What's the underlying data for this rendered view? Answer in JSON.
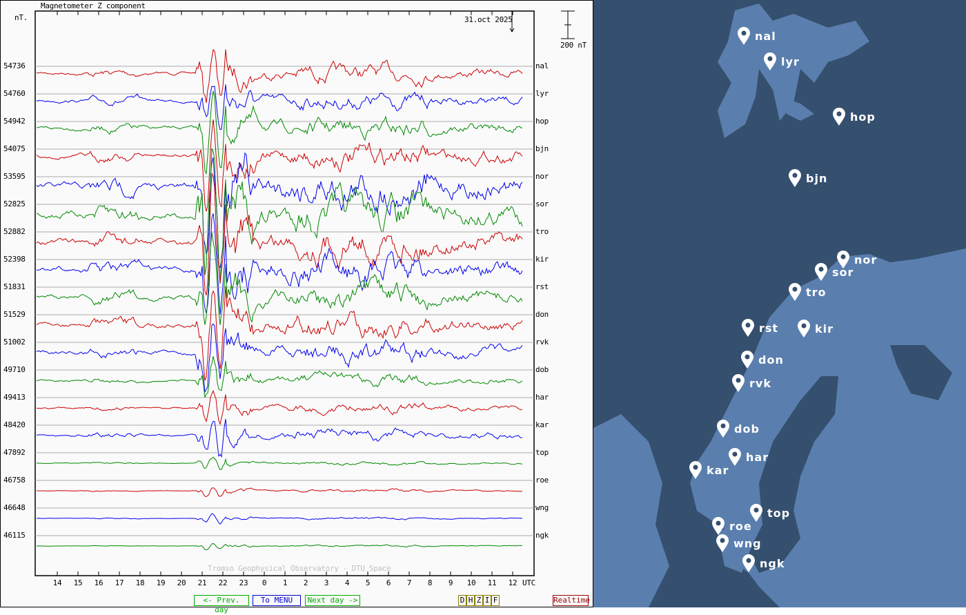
{
  "chart_data": {
    "type": "line",
    "title": "Magnetometer Z component",
    "ylabel": "nT.",
    "date_label": "31.oct 2025",
    "scale_label": "200 nT",
    "watermark": "Tromso Geophysical Observatory - DTU Space",
    "xlabel": "UTC",
    "hour_ticks": [
      "14",
      "15",
      "16",
      "17",
      "18",
      "19",
      "20",
      "21",
      "22",
      "23",
      "0",
      "1",
      "2",
      "3",
      "4",
      "5",
      "6",
      "7",
      "8",
      "9",
      "10",
      "11",
      "12"
    ],
    "stations": [
      {
        "code": "nal",
        "baseline": "54736",
        "color": "#cc0000",
        "activity": 0.7
      },
      {
        "code": "lyr",
        "baseline": "54760",
        "color": "#0000ee",
        "activity": 0.7
      },
      {
        "code": "hop",
        "baseline": "54942",
        "color": "#008800",
        "activity": 0.8
      },
      {
        "code": "bjn",
        "baseline": "54075",
        "color": "#cc0000",
        "activity": 1.0
      },
      {
        "code": "nor",
        "baseline": "53595",
        "color": "#0000ee",
        "activity": 1.6
      },
      {
        "code": "sor",
        "baseline": "52825",
        "color": "#008800",
        "activity": 1.6
      },
      {
        "code": "tro",
        "baseline": "52882",
        "color": "#cc0000",
        "activity": 1.4
      },
      {
        "code": "kir",
        "baseline": "52398",
        "color": "#0000ee",
        "activity": 1.3
      },
      {
        "code": "rst",
        "baseline": "51831",
        "color": "#008800",
        "activity": 1.1
      },
      {
        "code": "don",
        "baseline": "51529",
        "color": "#cc0000",
        "activity": 1.0
      },
      {
        "code": "rvk",
        "baseline": "51002",
        "color": "#0000ee",
        "activity": 0.9
      },
      {
        "code": "dob",
        "baseline": "49710",
        "color": "#008800",
        "activity": 0.5
      },
      {
        "code": "har",
        "baseline": "49413",
        "color": "#cc0000",
        "activity": 0.4
      },
      {
        "code": "kar",
        "baseline": "48420",
        "color": "#0000ee",
        "activity": 0.5
      },
      {
        "code": "top",
        "baseline": "47892",
        "color": "#008800",
        "activity": 0.15
      },
      {
        "code": "roe",
        "baseline": "46758",
        "color": "#cc0000",
        "activity": 0.12
      },
      {
        "code": "wng",
        "baseline": "46648",
        "color": "#0000ee",
        "activity": 0.1
      },
      {
        "code": "ngk",
        "baseline": "46115",
        "color": "#008800",
        "activity": 0.08
      }
    ]
  },
  "nav": {
    "prev": "<- Prev. day",
    "menu": "To MENU",
    "next": "Next day ->",
    "components": [
      "D",
      "H",
      "Z",
      "I",
      "F"
    ],
    "realtime": "Realtime"
  },
  "map": {
    "markers": [
      "nal",
      "lyr",
      "hop",
      "bjn",
      "nor",
      "sor",
      "tro",
      "rst",
      "kir",
      "don",
      "rvk",
      "dob",
      "har",
      "kar",
      "top",
      "roe",
      "wng",
      "ngk"
    ]
  }
}
